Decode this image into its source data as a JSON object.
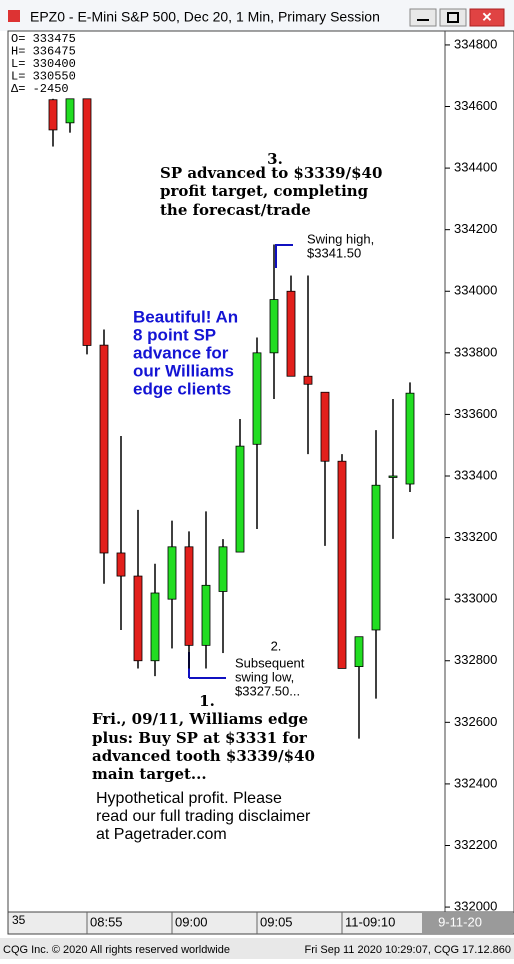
{
  "chart_data": {
    "type": "candlestick",
    "title": "EPZ0 - E-Mini S&P 500, Dec 20, 1 Min, Primary Session",
    "info_box": [
      "O=  333475",
      "H=  336475",
      "L=  330400",
      "L=  330550",
      "Δ=   -2450"
    ],
    "categories": [
      null,
      null,
      "08:55",
      null,
      null,
      null,
      null,
      "09:00",
      null,
      null,
      null,
      null,
      "09:05",
      null,
      null,
      null,
      null,
      "11-09:10",
      null,
      null,
      null,
      null
    ],
    "x_axis_start_label": "35",
    "date_label": "9-11-20",
    "up_color": "#22dd22",
    "down_color": "#e2201c",
    "open": [
      334622,
      334547,
      334625,
      333825,
      333150,
      333075,
      332800,
      333000,
      333170,
      332850,
      333025,
      333153,
      333503,
      333800,
      334000,
      333724,
      333672,
      333448,
      332781,
      332900,
      333400,
      333374
    ],
    "high": [
      334625,
      334625,
      334625,
      333876,
      333530,
      333290,
      333115,
      333255,
      333220,
      333285,
      333195,
      333585,
      333850,
      334152,
      334051,
      334051,
      333672,
      333471,
      332878,
      333549,
      333650,
      333704
    ],
    "low": [
      334470,
      334515,
      333795,
      333050,
      332900,
      332775,
      332750,
      332840,
      332775,
      332775,
      332825,
      333153,
      333228,
      333650,
      333724,
      333471,
      333173,
      332775,
      332547,
      332677,
      333196,
      333348
    ],
    "close": [
      334524,
      334625,
      333824,
      333150,
      333075,
      332800,
      333020,
      333170,
      332850,
      333045,
      333170,
      333497,
      333800,
      333973,
      333724,
      333698,
      333448,
      332775,
      332878,
      333370,
      333400,
      333669
    ],
    "ylim": [
      331984,
      334842
    ],
    "yticks": [
      332000,
      332200,
      332400,
      332600,
      332800,
      333000,
      333200,
      333400,
      333600,
      333800,
      334000,
      334200,
      334400,
      334600,
      334800
    ],
    "annotations": [
      {
        "lines": [
          "3.",
          "SP advanced to $3339/$40",
          "profit target, completing",
          "the forecast/trade"
        ]
      },
      {
        "lines": [
          "Swing high,",
          "$3341.50"
        ]
      },
      {
        "lines": [
          "Beautiful! An",
          "8 point SP",
          "advance for",
          "our Williams",
          "edge clients"
        ]
      },
      {
        "lines": [
          "2.",
          "Subsequent",
          "swing low,",
          "$3327.50..."
        ]
      },
      {
        "lines": [
          "1.",
          "Fri., 09/11, Williams edge",
          "plus: Buy SP at $3331 for",
          "advanced tooth $3339/$40",
          "main target..."
        ]
      },
      {
        "lines": [
          "Hypothetical profit. Please",
          "read our full trading disclaimer",
          "at Pagetrader.com"
        ]
      }
    ],
    "footer_left": "CQG Inc. © 2020 All rights reserved worldwide",
    "footer_right": "Fri Sep 11 2020 10:29:07, CQG 17.12.860"
  }
}
